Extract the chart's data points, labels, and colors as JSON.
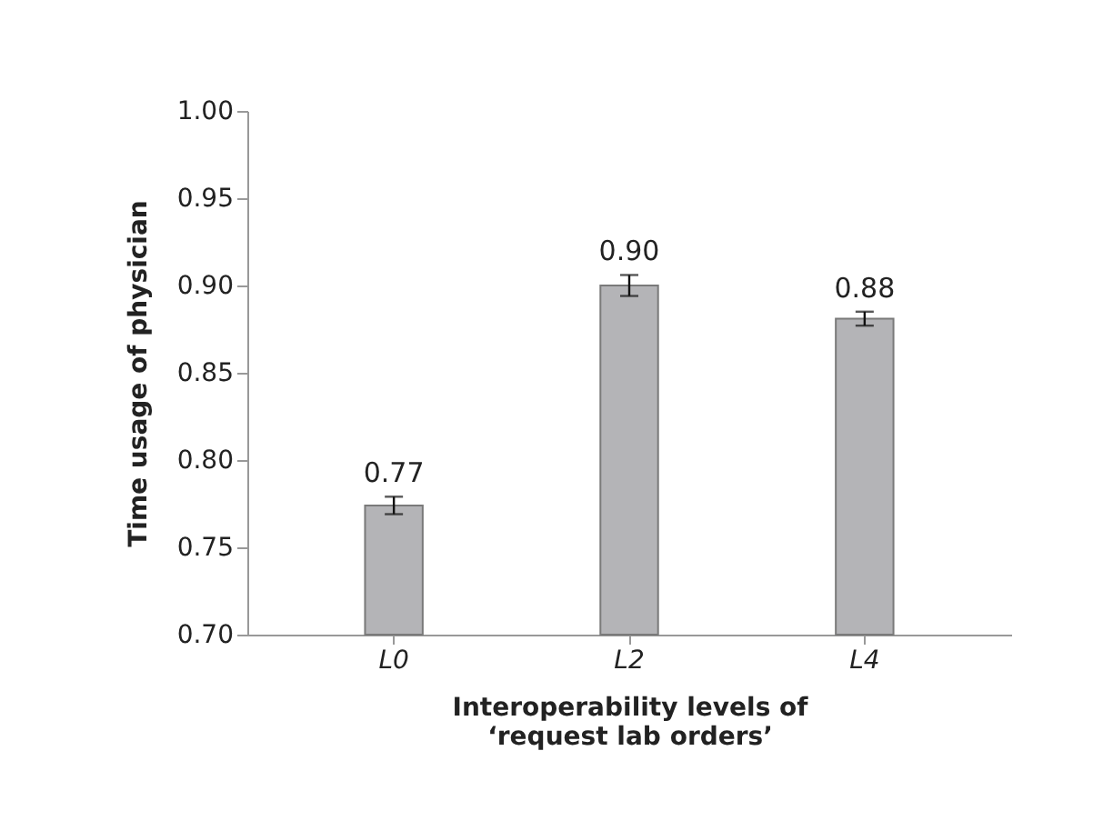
{
  "chart_data": {
    "type": "bar",
    "xlabel": "Interoperability levels of\n‘request lab orders’",
    "ylabel": "Time usage of physician",
    "categories": [
      "L0",
      "L2",
      "L4"
    ],
    "values": [
      0.774,
      0.9,
      0.881
    ],
    "errors": [
      0.005,
      0.006,
      0.004
    ],
    "value_labels": [
      "0.77",
      "0.90",
      "0.88"
    ],
    "color": "#b4b4b7",
    "ylim": [
      0.7,
      1.0
    ],
    "yticks": [
      {
        "value": 0.7,
        "label": "0.70"
      },
      {
        "value": 0.75,
        "label": "0.75"
      },
      {
        "value": 0.8,
        "label": "0.80"
      },
      {
        "value": 0.85,
        "label": "0.85"
      },
      {
        "value": 0.9,
        "label": "0.90"
      },
      {
        "value": 0.95,
        "label": "0.95"
      },
      {
        "value": 1.0,
        "label": "1.00"
      }
    ],
    "grid": false
  }
}
